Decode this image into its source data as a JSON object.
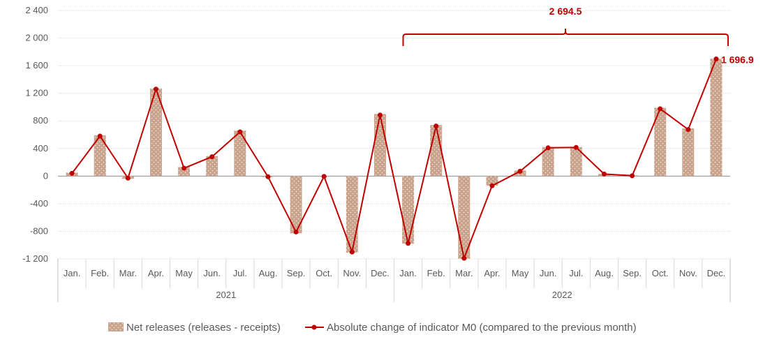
{
  "chart_data": {
    "type": "bar",
    "y_ticks": [
      -1200,
      -800,
      -400,
      0,
      400,
      800,
      1200,
      1600,
      2000,
      2400
    ],
    "y_tick_labels": [
      "-1 200",
      "-800",
      "-400",
      "0",
      "400",
      "800",
      "1 200",
      "1 600",
      "2 000",
      "2 400"
    ],
    "ylim": [
      -1200,
      2400
    ],
    "grid": true,
    "legend_position": "bottom",
    "categories": [
      "Jan.",
      "Feb.",
      "Mar.",
      "Apr.",
      "May",
      "Jun.",
      "Jul.",
      "Aug.",
      "Sep.",
      "Oct.",
      "Nov.",
      "Dec.",
      "Jan.",
      "Feb.",
      "Mar.",
      "Apr.",
      "May",
      "Jun.",
      "Jul.",
      "Aug.",
      "Sep.",
      "Oct.",
      "Nov.",
      "Dec."
    ],
    "groups": [
      {
        "label": "2021",
        "start": 0,
        "end": 11
      },
      {
        "label": "2022",
        "start": 12,
        "end": 23
      }
    ],
    "series": [
      {
        "name": "Net releases (releases - receipts)",
        "kind": "bar",
        "color": "#c9a38c",
        "values": [
          50,
          590,
          -40,
          1270,
          130,
          290,
          660,
          -15,
          -830,
          -10,
          -1110,
          900,
          -980,
          740,
          -1200,
          -140,
          80,
          420,
          420,
          30,
          10,
          990,
          690,
          1700
        ]
      },
      {
        "name": "Absolute change of indicator M0 (compared to the previous month)",
        "kind": "line",
        "color": "#c00000",
        "values": [
          40,
          580,
          -30,
          1260,
          115,
          280,
          640,
          -10,
          -810,
          -5,
          -1100,
          885,
          -975,
          725,
          -1190,
          -140,
          70,
          410,
          415,
          30,
          5,
          975,
          675,
          1696.9
        ]
      }
    ],
    "annotations": {
      "last_point_label": "1 696.9",
      "bracket_label": "2 694.5",
      "bracket_range": [
        12,
        23
      ]
    }
  }
}
